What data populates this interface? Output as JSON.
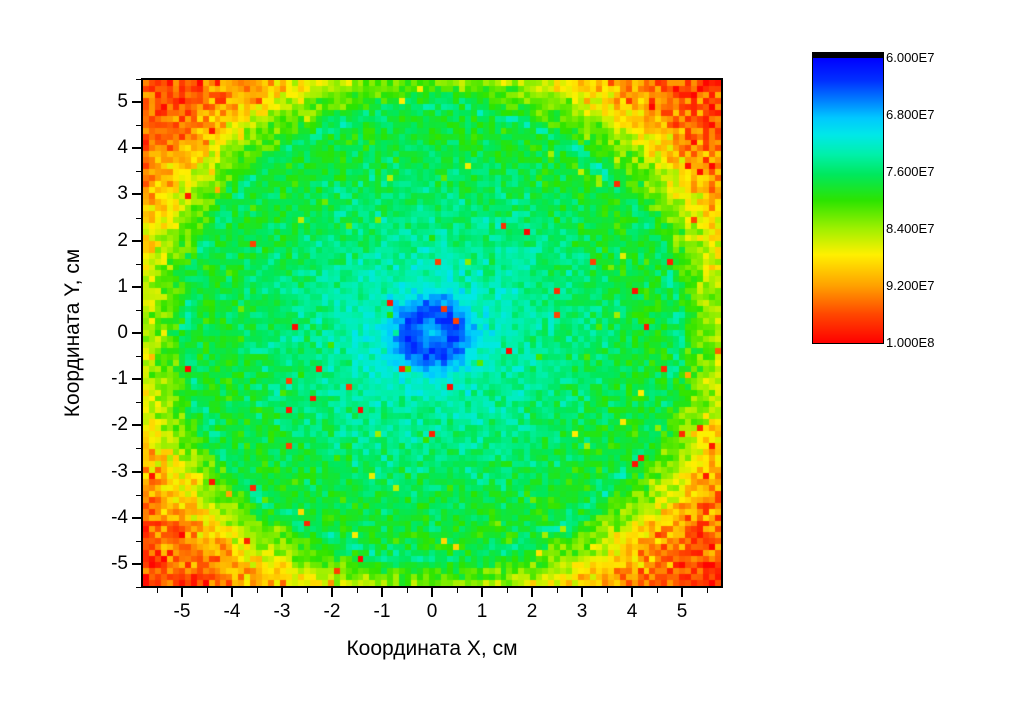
{
  "window": {
    "background": "#ffffff",
    "title": ""
  },
  "chart_data": {
    "type": "heatmap",
    "title": "",
    "xlabel": "Координата X, см",
    "ylabel": "Координата Y, см",
    "x_range": [
      -5.82,
      5.82
    ],
    "y_range": [
      -5.52,
      5.52
    ],
    "x_major_ticks": [
      -5,
      -4,
      -3,
      -2,
      -1,
      0,
      1,
      2,
      3,
      4,
      5
    ],
    "x_minor_ticks": [
      -5.5,
      -4.5,
      -3.5,
      -2.5,
      -1.5,
      -0.5,
      0.5,
      1.5,
      2.5,
      3.5,
      4.5,
      5.5
    ],
    "y_major_ticks": [
      5,
      4,
      3,
      2,
      1,
      0,
      -1,
      -2,
      -3,
      -4,
      -5
    ],
    "y_minor_ticks": [
      5.5,
      4.5,
      3.5,
      2.5,
      1.5,
      0.5,
      -0.5,
      -1.5,
      -2.5,
      -3.5,
      -4.5,
      -5.5
    ],
    "grid": [
      97,
      85
    ],
    "seed": 1337,
    "legend_position": "right",
    "value_scale": {
      "min": 60000000,
      "max": 100000000,
      "direction": "min-at-top",
      "out_of_range_low_color": "#000000",
      "ticks": [
        {
          "label": "6.000E7",
          "value": 60000000
        },
        {
          "label": "6.800E7",
          "value": 68000000
        },
        {
          "label": "7.600E7",
          "value": 76000000
        },
        {
          "label": "8.400E7",
          "value": 84000000
        },
        {
          "label": "9.200E7",
          "value": 92000000
        },
        {
          "label": "1.000E8",
          "value": 100000000
        }
      ]
    },
    "colormap": [
      {
        "t": 0.0,
        "color": "#0000FF"
      },
      {
        "t": 0.08,
        "color": "#0030FF"
      },
      {
        "t": 0.15,
        "color": "#0080FF"
      },
      {
        "t": 0.21,
        "color": "#00C8FF"
      },
      {
        "t": 0.27,
        "color": "#00E8E8"
      },
      {
        "t": 0.34,
        "color": "#00F0A8"
      },
      {
        "t": 0.41,
        "color": "#00E85C"
      },
      {
        "t": 0.5,
        "color": "#2CE400"
      },
      {
        "t": 0.6,
        "color": "#A0F000"
      },
      {
        "t": 0.69,
        "color": "#FFF000"
      },
      {
        "t": 0.8,
        "color": "#FFA000"
      },
      {
        "t": 0.9,
        "color": "#FF4600"
      },
      {
        "t": 1.0,
        "color": "#FF0000"
      }
    ],
    "model": {
      "description": "radially symmetric dose map: cyan core, blue donut at r~0.45, green plateau, dark-green ring at r~4.95, yellow-orange-red toward corners, speckle noise with red outlier pixels",
      "units_note": "values below are in units of 1e7; multiply by 1e7 for absolute scale",
      "radial_profile_E7": [
        [
          0.0,
          6.85
        ],
        [
          0.25,
          6.55
        ],
        [
          0.45,
          6.3
        ],
        [
          0.7,
          6.7
        ],
        [
          1.0,
          7.15
        ],
        [
          1.5,
          7.35
        ],
        [
          2.5,
          7.5
        ],
        [
          3.5,
          7.65
        ],
        [
          4.3,
          7.8
        ],
        [
          4.9,
          7.85
        ],
        [
          5.2,
          8.0
        ],
        [
          5.6,
          8.3
        ],
        [
          6.2,
          8.95
        ],
        [
          6.8,
          9.35
        ],
        [
          7.5,
          9.6
        ],
        [
          8.3,
          9.8
        ]
      ],
      "dark_ring": {
        "radius": 4.95,
        "width": 0.16,
        "depth_E7": 0.3
      },
      "noise": {
        "base_sigma_E7": 0.1,
        "sigma_slope_per_E7": 0.055
      },
      "outliers": {
        "probability": 0.005,
        "value_E7_min": 9.6,
        "value_E7_max": 10.0,
        "bump_probability": 0.012,
        "bump_E7_min": 0.45,
        "bump_E7_max": 0.95
      },
      "clamp_E7": [
        6.03,
        9.98
      ]
    }
  }
}
